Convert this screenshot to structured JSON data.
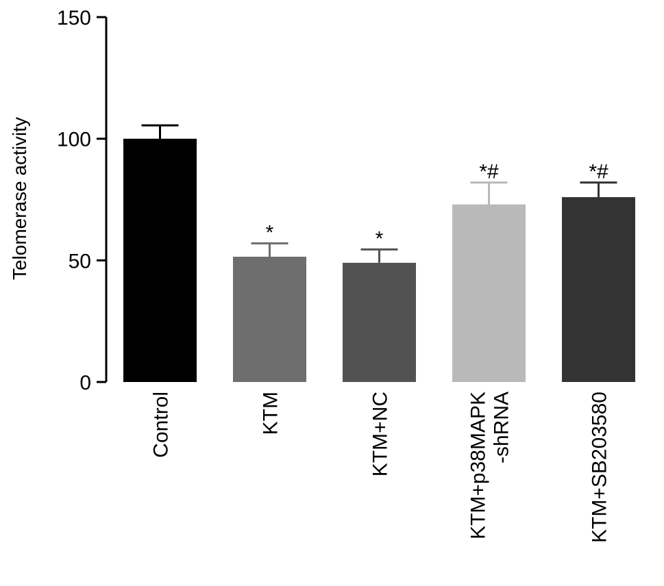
{
  "chart_data": {
    "type": "bar",
    "ylabel": "Telomerase activity",
    "xlabel": "",
    "ylim": [
      0,
      150
    ],
    "yticks": [
      0,
      50,
      100,
      150
    ],
    "categories": [
      "Control",
      "KTM",
      "KTM+NC",
      "KTM+p38MAPK\n-shRNA",
      "KTM+SB203580"
    ],
    "values": [
      100,
      51.5,
      49,
      73,
      76
    ],
    "error": [
      5.5,
      5.5,
      5.5,
      9,
      6
    ],
    "significance": [
      "",
      "*",
      "*",
      "*#",
      "*#"
    ],
    "colors": [
      "#000000",
      "#6e6e6e",
      "#525252",
      "#b9b9b9",
      "#333333"
    ]
  }
}
